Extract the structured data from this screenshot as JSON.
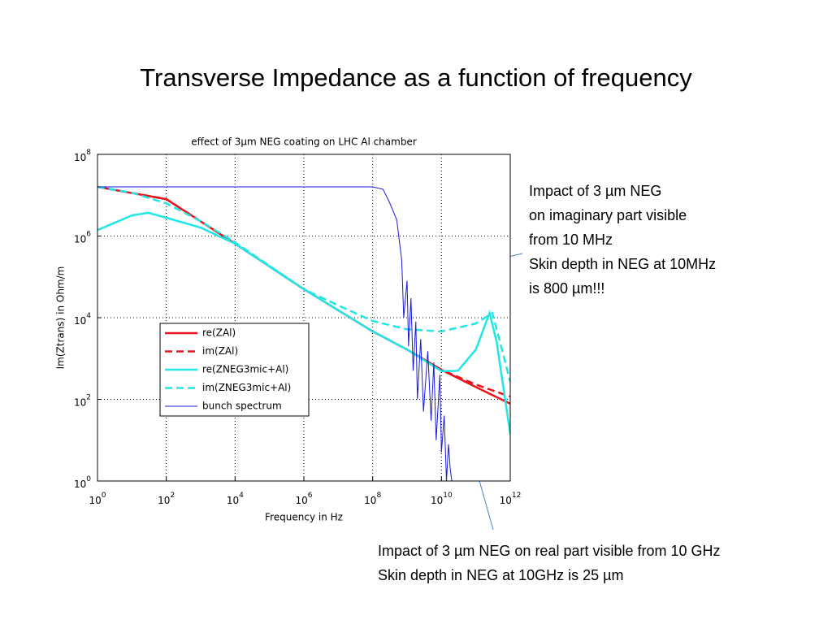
{
  "slide_title": "Transverse Impedance as a function of frequency",
  "annotations": [
    {
      "lines": [
        "Impact of 3 µm NEG",
        "on imaginary part visible",
        "from 10 MHz",
        "Skin depth in NEG at 10MHz",
        "is 800 µm!!!"
      ]
    },
    {
      "lines": [
        "Impact of 3 µm NEG on real part visible from 10 GHz",
        "Skin depth in NEG at 10GHz is 25 µm"
      ]
    }
  ],
  "chart_data": {
    "type": "line",
    "title": "effect of 3μm NEG coating on LHC Al chamber",
    "xlabel": "Frequency in Hz",
    "ylabel": "Im(Ztrans) in Ohm/m",
    "xscale": "log",
    "yscale": "log",
    "xlim": [
      1,
      1000000000000
    ],
    "ylim": [
      1,
      100000000
    ],
    "xticks": [
      {
        "value": 1,
        "label": "10",
        "exponent": "0"
      },
      {
        "value": 100,
        "label": "10",
        "exponent": "2"
      },
      {
        "value": 10000,
        "label": "10",
        "exponent": "4"
      },
      {
        "value": 1000000,
        "label": "10",
        "exponent": "6"
      },
      {
        "value": 100000000,
        "label": "10",
        "exponent": "8"
      },
      {
        "value": 10000000000,
        "label": "10",
        "exponent": "10"
      },
      {
        "value": 1000000000000,
        "label": "10",
        "exponent": "12"
      }
    ],
    "yticks": [
      {
        "value": 1,
        "label": "10",
        "exponent": "0"
      },
      {
        "value": 100,
        "label": "10",
        "exponent": "2"
      },
      {
        "value": 10000,
        "label": "10",
        "exponent": "4"
      },
      {
        "value": 1000000,
        "label": "10",
        "exponent": "6"
      },
      {
        "value": 100000000,
        "label": "10",
        "exponent": "8"
      }
    ],
    "grid": true,
    "legend": "lower left",
    "series": [
      {
        "name": "re(ZAl)",
        "color": "#e8141b",
        "dash": false,
        "x": [
          1,
          100,
          10000,
          1000000,
          100000000,
          1000000000,
          10000000000,
          100000000000,
          1000000000000
        ],
        "values": [
          16000000,
          8000000,
          650000,
          50000,
          4600,
          1660,
          530,
          200,
          78
        ]
      },
      {
        "name": "im(ZAl)",
        "color": "#e8141b",
        "dash": true,
        "x": [
          1,
          100,
          10000,
          1000000,
          100000000,
          1000000000,
          10000000000,
          100000000000,
          1000000000000
        ],
        "values": [
          16000000,
          8000000,
          650000,
          50000,
          4600,
          1660,
          530,
          230,
          117
        ]
      },
      {
        "name": "re(ZNEG3mic+Al)",
        "color": "#22e6e6",
        "dash": false,
        "x": [
          1,
          10,
          30,
          100,
          1000,
          10000,
          1000000,
          100000000,
          1000000000,
          10000000000,
          30000000000,
          100000000000,
          250000000000,
          400000000000,
          1000000000000
        ],
        "values": [
          1400000,
          3200000,
          3700000,
          2800000,
          1600000,
          650000,
          50000,
          4600,
          1660,
          490,
          500,
          1660,
          13000,
          2600,
          14
        ]
      },
      {
        "name": "im(ZNEG3mic+Al)",
        "color": "#22e6e6",
        "dash": true,
        "x": [
          1,
          10,
          100,
          1000,
          10000,
          1000000,
          10000000,
          100000000,
          1000000000,
          10000000000,
          100000000000,
          300000000000,
          500000000000,
          1000000000000
        ],
        "values": [
          16000000,
          11500000,
          6300000,
          2300000,
          700000,
          50000,
          20000,
          8300,
          5200,
          4600,
          7200,
          13000,
          2600,
          270
        ]
      },
      {
        "name": "bunch spectrum",
        "color": "#1a1ad6",
        "dash": false,
        "x": [
          1,
          10000,
          100000000,
          200000000,
          300000000,
          500000000,
          700000000,
          800000000,
          1000000000,
          1100000000,
          1300000000,
          1500000000,
          1800000000,
          2000000000,
          2500000000,
          3000000000,
          4000000000,
          5000000000,
          6000000000,
          7000000000,
          9000000000,
          10000000000,
          12000000000,
          14000000000,
          16000000000,
          18000000000,
          20000000000
        ],
        "values": [
          16000000,
          16000000,
          16000000,
          14000000,
          7000000,
          2500000,
          260000,
          10000,
          80000,
          2000,
          30000,
          500,
          8000,
          100,
          3000,
          50,
          1500,
          30,
          800,
          10,
          400,
          5,
          40,
          1,
          8,
          2,
          1
        ]
      }
    ]
  }
}
